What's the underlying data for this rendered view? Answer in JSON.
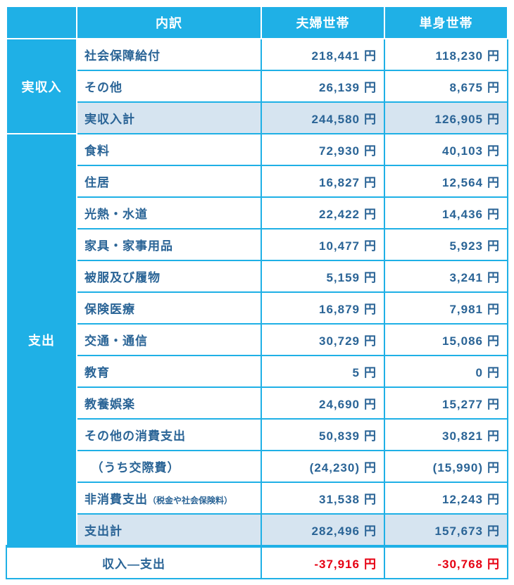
{
  "colors": {
    "brand": "#1fb0e6",
    "text": "#2a6496",
    "subtotal_bg": "#d6e4f0",
    "negative": "#e60012",
    "background": "#ffffff"
  },
  "header": {
    "item_col": "内訳",
    "couple_col": "夫婦世帯",
    "single_col": "単身世帯"
  },
  "currency_label": "円",
  "income": {
    "section_label": "実収入",
    "rows": [
      {
        "label": "社会保障給付",
        "couple": "218,441",
        "single": "118,230"
      },
      {
        "label": "その他",
        "couple": "26,139",
        "single": "8,675"
      }
    ],
    "subtotal": {
      "label": "実収入計",
      "couple": "244,580",
      "single": "126,905"
    }
  },
  "expense": {
    "section_label": "支出",
    "rows": [
      {
        "label": "食料",
        "couple": "72,930",
        "single": "40,103"
      },
      {
        "label": "住居",
        "couple": "16,827",
        "single": "12,564"
      },
      {
        "label": "光熱・水道",
        "couple": "22,422",
        "single": "14,436"
      },
      {
        "label": "家具・家事用品",
        "couple": "10,477",
        "single": "5,923"
      },
      {
        "label": "被服及び履物",
        "couple": "5,159",
        "single": "3,241"
      },
      {
        "label": "保険医療",
        "couple": "16,879",
        "single": "7,981"
      },
      {
        "label": "交通・通信",
        "couple": "30,729",
        "single": "15,086"
      },
      {
        "label": "教育",
        "couple": "5",
        "single": "0"
      },
      {
        "label": "教養娯楽",
        "couple": "24,690",
        "single": "15,277"
      },
      {
        "label": "その他の消費支出",
        "couple": "50,839",
        "single": "30,821"
      },
      {
        "label": "　（うち交際費）",
        "couple": "(24,230)",
        "single": "(15,990)"
      },
      {
        "label": "非消費支出",
        "label_sub": "（税金や社会保険料）",
        "couple": "31,538",
        "single": "12,243"
      }
    ],
    "subtotal": {
      "label": "支出計",
      "couple": "282,496",
      "single": "157,673"
    }
  },
  "net": {
    "label": "収入―支出",
    "couple": "-37,916",
    "single": "-30,768"
  }
}
